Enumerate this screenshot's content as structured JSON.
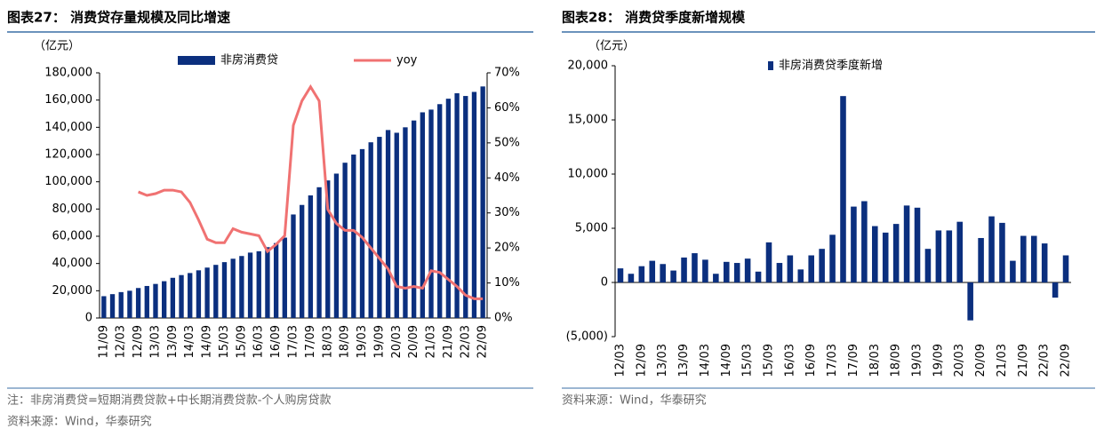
{
  "chart_data": [
    {
      "type": "bar",
      "title": "图表27： 消费贷存量规模及同比增速",
      "unit": "（亿元）",
      "categories": [
        "11/09",
        null,
        "12/03",
        null,
        "12/09",
        null,
        "13/03",
        null,
        "13/09",
        null,
        "14/03",
        null,
        "14/09",
        null,
        "15/03",
        null,
        "15/09",
        null,
        "16/03",
        null,
        "16/09",
        null,
        "17/03",
        null,
        "17/09",
        null,
        "18/03",
        null,
        "18/09",
        null,
        "19/03",
        null,
        "19/09",
        null,
        "20/03",
        null,
        "20/09",
        null,
        "21/03",
        null,
        "21/09",
        null,
        "22/03",
        null,
        "22/09"
      ],
      "series": [
        {
          "name": "非房消费贷",
          "type": "bar",
          "color": "#0b2f7e",
          "values": [
            16000,
            17500,
            19000,
            20000,
            22000,
            23500,
            25000,
            27000,
            29500,
            31500,
            33000,
            35000,
            37000,
            39000,
            41000,
            43500,
            45500,
            48000,
            49000,
            52000,
            55000,
            59000,
            76000,
            83000,
            90000,
            96000,
            101000,
            106000,
            114000,
            120000,
            124000,
            129000,
            133000,
            138000,
            136000,
            140000,
            145000,
            151000,
            153000,
            157000,
            161000,
            165000,
            163000,
            166000,
            170000
          ]
        },
        {
          "name": "yoy",
          "type": "line",
          "axis": "y2",
          "color": "#f07272",
          "values": [
            null,
            null,
            null,
            null,
            36,
            35,
            35.5,
            36.5,
            36.5,
            36,
            33,
            28,
            22.5,
            21.5,
            21.5,
            25.5,
            24.5,
            24,
            23.5,
            19,
            21,
            23.5,
            55,
            62,
            66,
            62,
            31,
            27,
            25,
            25,
            23,
            20,
            17,
            14,
            9,
            8.5,
            9,
            8.5,
            13.5,
            13,
            11,
            9,
            6.5,
            5.5,
            5.5
          ]
        }
      ],
      "ylim": [
        0,
        180000
      ],
      "yticks": [
        0,
        {
          "value": 20000,
          "label": "20,000"
        },
        {
          "value": 40000,
          "label": "40,000"
        },
        {
          "value": 60000,
          "label": "60,000"
        },
        {
          "value": 80000,
          "label": "80,000"
        },
        {
          "value": 100000,
          "label": "100,000"
        },
        {
          "value": 120000,
          "label": "120,000"
        },
        {
          "value": 140000,
          "label": "140,000"
        },
        {
          "value": 160000,
          "label": "160,000"
        },
        {
          "value": 180000,
          "label": "180,000"
        }
      ],
      "y2lim": [
        0,
        70
      ],
      "y2ticks": [
        {
          "value": 0,
          "label": "0%"
        },
        {
          "value": 10,
          "label": "10%"
        },
        {
          "value": 20,
          "label": "20%"
        },
        {
          "value": 30,
          "label": "30%"
        },
        {
          "value": 40,
          "label": "40%"
        },
        {
          "value": 50,
          "label": "50%"
        },
        {
          "value": 60,
          "label": "60%"
        },
        {
          "value": 70,
          "label": "70%"
        }
      ],
      "note": "注：非房消费贷=短期消费贷款+中长期消费贷款-个人购房贷款",
      "source": "资料来源：Wind，华泰研究"
    },
    {
      "type": "bar",
      "title": "图表28： 消费贷季度新增规模",
      "unit": "（亿元）",
      "categories": [
        "12/03",
        null,
        "12/09",
        null,
        "13/03",
        null,
        "13/09",
        null,
        "14/03",
        null,
        "14/09",
        null,
        "15/03",
        null,
        "15/09",
        null,
        "16/03",
        null,
        "16/09",
        null,
        "17/03",
        null,
        "17/09",
        null,
        "18/03",
        null,
        "18/09",
        null,
        "19/03",
        null,
        "19/09",
        null,
        "20/03",
        null,
        "20/09",
        null,
        "21/03",
        null,
        "21/09",
        null,
        "22/03",
        null,
        "22/09"
      ],
      "series": [
        {
          "name": "非房消费贷季度新增",
          "type": "bar",
          "color": "#0b2f7e",
          "values": [
            1300,
            800,
            1500,
            2000,
            1700,
            1100,
            2300,
            2700,
            2100,
            800,
            1900,
            1800,
            2200,
            1000,
            3700,
            1800,
            2500,
            1200,
            2500,
            3100,
            4400,
            17200,
            7000,
            7500,
            5200,
            4600,
            5400,
            7100,
            6900,
            3100,
            4800,
            4800,
            5600,
            -3500,
            4100,
            6100,
            5500,
            2000,
            4300,
            4300,
            3600,
            -1400,
            2500
          ]
        }
      ],
      "ylim": [
        -5000,
        20000
      ],
      "yticks": [
        {
          "value": -5000,
          "label": "(5,000)"
        },
        0,
        {
          "value": 5000,
          "label": "5,000"
        },
        {
          "value": 10000,
          "label": "10,000"
        },
        {
          "value": 15000,
          "label": "15,000"
        },
        {
          "value": 20000,
          "label": "20,000"
        }
      ],
      "source": "资料来源：Wind，华泰研究"
    }
  ]
}
